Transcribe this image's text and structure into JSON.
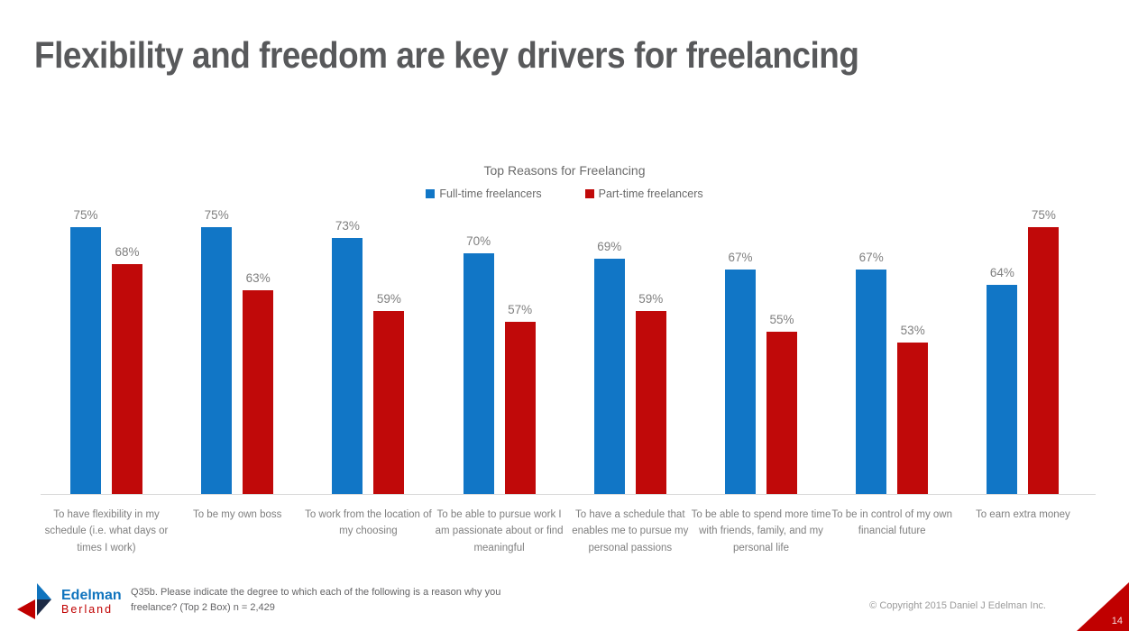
{
  "slide": {
    "title": "Flexibility and freedom are key drivers for freelancing",
    "footnote": {
      "line1": "Q35b. Please indicate the degree to which each of the following is a reason why you",
      "line2": "freelance? (Top 2 Box) n = 2,429"
    },
    "copyright": "© Copyright 2015 Daniel J Edelman Inc.",
    "page_number": "14",
    "logo": {
      "line1": "Edelman",
      "line2": "Berland"
    },
    "colors": {
      "accent_red": "#c00000",
      "logo_blue": "#1074be",
      "logo_navy": "#1d2a45"
    }
  },
  "chart_data": {
    "type": "bar",
    "title": "Top Reasons for Freelancing",
    "categories": [
      "To have flexibility in my schedule (i.e. what days or times I work)",
      "To be my own boss",
      "To work from the location of my choosing",
      "To be able to pursue work I am passionate about or find meaningful",
      "To have a schedule that enables me to pursue my personal passions",
      "To be able to spend more time with friends, family, and my personal life",
      "To be in control of my own financial future",
      "To earn extra money"
    ],
    "series": [
      {
        "name": "Full-time freelancers",
        "color": "#1176c6",
        "values": [
          75,
          75,
          73,
          70,
          69,
          67,
          67,
          64
        ]
      },
      {
        "name": "Part-time freelancers",
        "color": "#c00909",
        "values": [
          68,
          63,
          59,
          57,
          59,
          55,
          53,
          75
        ]
      }
    ],
    "value_suffix": "%",
    "ylim": [
      24,
      80
    ],
    "grid": false,
    "legend_position": "top"
  }
}
